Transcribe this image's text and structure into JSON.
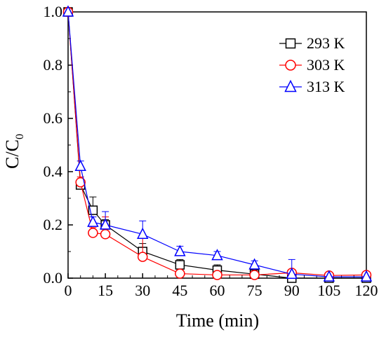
{
  "chart_data": {
    "type": "line",
    "xlabel": "Time (min)",
    "ylabel": {
      "main": "C/C",
      "sub": "0"
    },
    "xlim": [
      0,
      120
    ],
    "ylim": [
      0.0,
      1.0
    ],
    "x_ticks": [
      0,
      15,
      30,
      45,
      60,
      75,
      90,
      105,
      120
    ],
    "y_ticks": [
      "0.0",
      "0.2",
      "0.4",
      "0.6",
      "0.8",
      "1.0"
    ],
    "y_tick_values": [
      0.0,
      0.2,
      0.4,
      0.6,
      0.8,
      1.0
    ],
    "x_minor_step": 5,
    "y_minor_step": 0.1,
    "grid": false,
    "legend_position": "top-right",
    "series": [
      {
        "name": "293 K",
        "color": "#000000",
        "marker": "square",
        "x": [
          0,
          5,
          10,
          15,
          30,
          45,
          60,
          75,
          90,
          105,
          120
        ],
        "y": [
          1.0,
          0.35,
          0.255,
          0.2,
          0.1,
          0.05,
          0.03,
          0.015,
          0.0,
          0.0,
          0.0
        ],
        "err": [
          0.0,
          0.02,
          0.05,
          0.02,
          0.03,
          0.02,
          0.02,
          0.01,
          0.0,
          0.0,
          0.0
        ]
      },
      {
        "name": "303 K",
        "color": "#ff0000",
        "marker": "circle",
        "x": [
          0,
          5,
          10,
          15,
          30,
          45,
          60,
          75,
          90,
          105,
          120
        ],
        "y": [
          1.0,
          0.36,
          0.17,
          0.165,
          0.08,
          0.017,
          0.012,
          0.012,
          0.02,
          0.01,
          0.012
        ],
        "err": [
          0.0,
          0.02,
          0.02,
          0.065,
          0.08,
          0.01,
          0.01,
          0.008,
          0.0,
          0.0,
          0.0
        ]
      },
      {
        "name": "313 K",
        "color": "#0000ff",
        "marker": "triangle",
        "x": [
          0,
          5,
          10,
          15,
          30,
          45,
          60,
          75,
          90,
          105,
          120
        ],
        "y": [
          1.0,
          0.42,
          0.21,
          0.2,
          0.165,
          0.1,
          0.085,
          0.05,
          0.015,
          0.005,
          0.005
        ],
        "err": [
          0.0,
          0.02,
          0.02,
          0.05,
          0.05,
          0.02,
          0.015,
          0.015,
          0.055,
          0.0,
          0.0
        ]
      }
    ]
  }
}
